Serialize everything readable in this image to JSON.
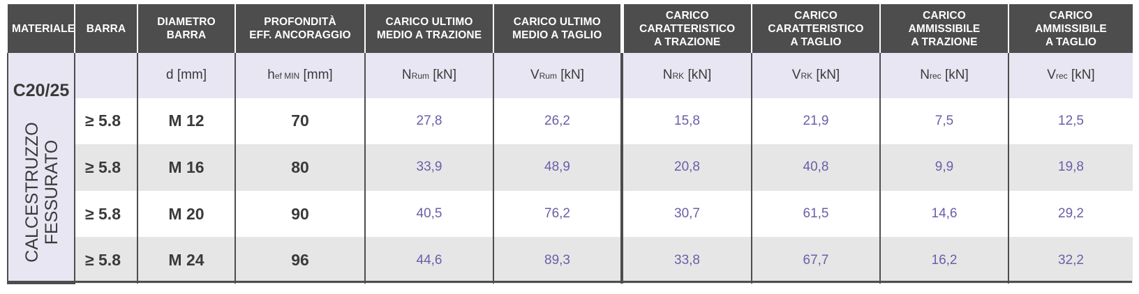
{
  "headers": [
    {
      "lines": [
        "MATERIALE"
      ]
    },
    {
      "lines": [
        "BARRA"
      ]
    },
    {
      "lines": [
        "DIAMETRO",
        "BARRA"
      ]
    },
    {
      "lines": [
        "PROFONDITÀ",
        "EFF. ANCORAGGIO"
      ]
    },
    {
      "lines": [
        "CARICO ULTIMO",
        "MEDIO A TRAZIONE"
      ]
    },
    {
      "lines": [
        "CARICO ULTIMO",
        "MEDIO A TAGLIO"
      ]
    },
    {
      "lines": [
        "CARICO",
        "CARATTERISTICO",
        "A TRAZIONE"
      ]
    },
    {
      "lines": [
        "CARICO",
        "CARATTERISTICO",
        "A TAGLIO"
      ]
    },
    {
      "lines": [
        "CARICO",
        "AMMISSIBILE",
        "A TRAZIONE"
      ]
    },
    {
      "lines": [
        "CARICO",
        "AMMISSIBILE",
        "A TAGLIO"
      ]
    }
  ],
  "material": {
    "class": "C20/25",
    "name_line1": "CALCESTRUZZO",
    "name_line2": "FESSURATO"
  },
  "units": {
    "d": {
      "main": "d",
      "sub": "",
      "unit": " [mm]"
    },
    "hef": {
      "main": "h",
      "sub": "ef MIN",
      "unit": " [mm]"
    },
    "nrum": {
      "main": "N",
      "sub": "Rum",
      "unit": " [kN]"
    },
    "vrum": {
      "main": "V",
      "sub": "Rum",
      "unit": " [kN]"
    },
    "nrk": {
      "main": "N",
      "sub": "RK",
      "unit": " [kN]"
    },
    "vrk": {
      "main": "V",
      "sub": "RK",
      "unit": " [kN]"
    },
    "nrec": {
      "main": "N",
      "sub": "rec",
      "unit": " [kN]"
    },
    "vrec": {
      "main": "V",
      "sub": "rec",
      "unit": " [kN]"
    }
  },
  "rows": [
    {
      "bar": "≥ 5.8",
      "diameter": "M 12",
      "embedment": "70",
      "nrum": "27,8",
      "vrum": "26,2",
      "nrk": "15,8",
      "vrk": "21,9",
      "nrec": "7,5",
      "vrec": "12,5"
    },
    {
      "bar": "≥ 5.8",
      "diameter": "M 16",
      "embedment": "80",
      "nrum": "33,9",
      "vrum": "48,9",
      "nrk": "20,8",
      "vrk": "40,8",
      "nrec": "9,9",
      "vrec": "19,8"
    },
    {
      "bar": "≥ 5.8",
      "diameter": "M 20",
      "embedment": "90",
      "nrum": "40,5",
      "vrum": "76,2",
      "nrk": "30,7",
      "vrk": "61,5",
      "nrec": "14,6",
      "vrec": "29,2"
    },
    {
      "bar": "≥ 5.8",
      "diameter": "M 24",
      "embedment": "96",
      "nrum": "44,6",
      "vrum": "89,3",
      "nrk": "33,8",
      "vrk": "67,7",
      "nrec": "16,2",
      "vrec": "32,2"
    }
  ],
  "colors": {
    "header_bg": "#4d4d4d",
    "units_bg": "#e8e6f3",
    "shade_bg": "#e6e6e6",
    "value_text": "#6a5ea8"
  }
}
